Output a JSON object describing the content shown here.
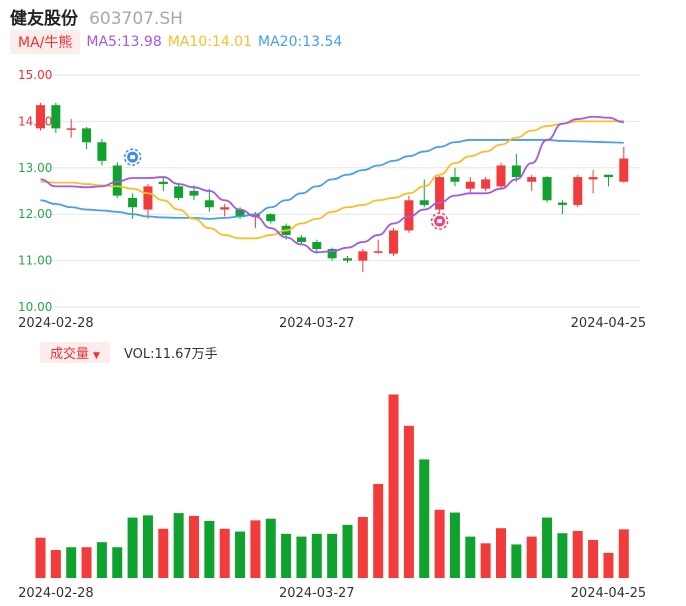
{
  "header": {
    "name": "健友股份",
    "code": "603707.SH"
  },
  "ma_legend": {
    "tag": "MA/牛熊",
    "items": [
      {
        "label": "MA5:13.98",
        "color": "#a259e6"
      },
      {
        "label": "MA10:14.01",
        "color": "#f5c02b"
      },
      {
        "label": "MA20:13.54",
        "color": "#4a9fe8"
      }
    ]
  },
  "volume_legend": {
    "tag": "成交量",
    "value": "VOL:11.67万手"
  },
  "colors": {
    "up": "#f23b3b",
    "down": "#10a22f",
    "ma5": "#a259e6",
    "ma10": "#f5c02b",
    "ma20": "#4a9fe8",
    "grid": "#e6e6e6"
  },
  "icons": {
    "bear_marker": "bear-badge-icon",
    "bull_marker": "bull-badge-icon"
  },
  "chart_data": [
    {
      "type": "candlestick",
      "title": "",
      "ylim": [
        10.0,
        15.0
      ],
      "yticks": [
        "15.00",
        "14.00",
        "13.00",
        "12.00",
        "11.00",
        "10.00"
      ],
      "xtick_labels": [
        "2024-02-28",
        "2024-03-27",
        "2024-04-25"
      ],
      "grid": true,
      "candles": [
        {
          "o": 13.85,
          "c": 14.35,
          "h": 14.4,
          "l": 13.8
        },
        {
          "o": 14.35,
          "c": 13.85,
          "h": 14.4,
          "l": 13.75
        },
        {
          "o": 13.85,
          "c": 13.85,
          "h": 14.05,
          "l": 13.65
        },
        {
          "o": 13.85,
          "c": 13.55,
          "h": 13.88,
          "l": 13.4
        },
        {
          "o": 13.55,
          "c": 13.15,
          "h": 13.62,
          "l": 13.05
        },
        {
          "o": 13.05,
          "c": 12.4,
          "h": 13.12,
          "l": 12.35
        },
        {
          "o": 12.35,
          "c": 12.15,
          "h": 12.45,
          "l": 11.9
        },
        {
          "o": 12.1,
          "c": 12.6,
          "h": 12.65,
          "l": 11.9
        },
        {
          "o": 12.7,
          "c": 12.65,
          "h": 12.8,
          "l": 12.5
        },
        {
          "o": 12.6,
          "c": 12.35,
          "h": 12.65,
          "l": 12.3
        },
        {
          "o": 12.5,
          "c": 12.4,
          "h": 12.62,
          "l": 12.3
        },
        {
          "o": 12.3,
          "c": 12.15,
          "h": 12.55,
          "l": 12.05
        },
        {
          "o": 12.1,
          "c": 12.15,
          "h": 12.22,
          "l": 11.95
        },
        {
          "o": 12.1,
          "c": 11.95,
          "h": 12.15,
          "l": 11.9
        },
        {
          "o": 11.95,
          "c": 12.0,
          "h": 12.05,
          "l": 11.7
        },
        {
          "o": 12.0,
          "c": 11.85,
          "h": 12.02,
          "l": 11.8
        },
        {
          "o": 11.75,
          "c": 11.55,
          "h": 11.8,
          "l": 11.45
        },
        {
          "o": 11.5,
          "c": 11.4,
          "h": 11.55,
          "l": 11.35
        },
        {
          "o": 11.4,
          "c": 11.25,
          "h": 11.45,
          "l": 11.15
        },
        {
          "o": 11.25,
          "c": 11.05,
          "h": 11.28,
          "l": 11.0
        },
        {
          "o": 11.05,
          "c": 11.0,
          "h": 11.1,
          "l": 10.95
        },
        {
          "o": 11.0,
          "c": 11.2,
          "h": 11.25,
          "l": 10.75
        },
        {
          "o": 11.2,
          "c": 11.2,
          "h": 11.45,
          "l": 11.15
        },
        {
          "o": 11.15,
          "c": 11.65,
          "h": 11.7,
          "l": 11.1
        },
        {
          "o": 11.65,
          "c": 12.3,
          "h": 12.4,
          "l": 11.6
        },
        {
          "o": 12.3,
          "c": 12.2,
          "h": 12.75,
          "l": 12.15
        },
        {
          "o": 12.1,
          "c": 12.8,
          "h": 12.82,
          "l": 11.95
        },
        {
          "o": 12.8,
          "c": 12.7,
          "h": 13.0,
          "l": 12.6
        },
        {
          "o": 12.55,
          "c": 12.7,
          "h": 12.8,
          "l": 12.45
        },
        {
          "o": 12.55,
          "c": 12.75,
          "h": 12.8,
          "l": 12.5
        },
        {
          "o": 12.6,
          "c": 13.05,
          "h": 13.1,
          "l": 12.55
        },
        {
          "o": 13.05,
          "c": 12.8,
          "h": 13.3,
          "l": 12.7
        },
        {
          "o": 12.7,
          "c": 12.8,
          "h": 12.85,
          "l": 12.5
        },
        {
          "o": 12.8,
          "c": 12.3,
          "h": 12.82,
          "l": 12.25
        },
        {
          "o": 12.25,
          "c": 12.2,
          "h": 12.3,
          "l": 12.0
        },
        {
          "o": 12.2,
          "c": 12.8,
          "h": 12.85,
          "l": 12.15
        },
        {
          "o": 12.75,
          "c": 12.8,
          "h": 12.95,
          "l": 12.45
        },
        {
          "o": 12.85,
          "c": 12.8,
          "h": 12.85,
          "l": 12.6
        },
        {
          "o": 12.7,
          "c": 13.2,
          "h": 13.45,
          "l": 12.68
        }
      ],
      "ma5": [
        12.75,
        12.6,
        12.6,
        12.58,
        12.6,
        12.7,
        12.78,
        12.78,
        12.8,
        12.65,
        12.58,
        12.5,
        12.3,
        12.1,
        11.95,
        11.7,
        11.5,
        11.35,
        11.18,
        11.2,
        11.28,
        11.4,
        11.55,
        11.8,
        11.95,
        12.1,
        12.25,
        12.4,
        12.45,
        12.45,
        12.55,
        12.75,
        13.1,
        13.6,
        13.95,
        14.05,
        14.1,
        14.08,
        13.98
      ],
      "ma10": [
        12.7,
        12.68,
        12.68,
        12.65,
        12.62,
        12.6,
        12.55,
        12.45,
        12.3,
        12.1,
        11.9,
        11.7,
        11.55,
        11.48,
        11.48,
        11.55,
        11.65,
        11.8,
        11.9,
        12.05,
        12.15,
        12.2,
        12.3,
        12.35,
        12.45,
        12.6,
        12.85,
        13.1,
        13.25,
        13.35,
        13.5,
        13.65,
        13.8,
        13.9,
        13.95,
        14.0,
        14.0,
        14.0,
        14.01
      ],
      "ma20": [
        12.3,
        12.22,
        12.15,
        12.1,
        12.08,
        12.05,
        12.0,
        11.95,
        11.93,
        11.92,
        11.92,
        11.9,
        11.92,
        11.95,
        12.0,
        12.15,
        12.3,
        12.45,
        12.6,
        12.75,
        12.85,
        12.95,
        13.05,
        13.15,
        13.25,
        13.35,
        13.45,
        13.55,
        13.6,
        13.6,
        13.6,
        13.6,
        13.6,
        13.6,
        13.58,
        13.57,
        13.56,
        13.55,
        13.54
      ]
    },
    {
      "type": "bar",
      "title": "",
      "xtick_labels": [
        "2024-02-28",
        "2024-03-27",
        "2024-04-25"
      ],
      "values": [
        7.2,
        5.0,
        5.5,
        5.5,
        6.4,
        5.5,
        10.8,
        11.2,
        8.8,
        11.6,
        11.1,
        10.2,
        8.8,
        8.3,
        10.3,
        10.6,
        7.9,
        7.4,
        7.9,
        7.9,
        9.5,
        10.9,
        16.8,
        32.8,
        27.2,
        21.2,
        12.2,
        11.7,
        7.4,
        6.2,
        8.9,
        6.0,
        7.4,
        10.8,
        8.0,
        8.4,
        6.8,
        4.5,
        8.7
      ],
      "directions": [
        "up",
        "up",
        "down",
        "up",
        "down",
        "down",
        "down",
        "down",
        "up",
        "down",
        "up",
        "down",
        "up",
        "down",
        "up",
        "down",
        "down",
        "down",
        "down",
        "down",
        "down",
        "up",
        "up",
        "up",
        "up",
        "down",
        "up",
        "down",
        "down",
        "up",
        "up",
        "down",
        "up",
        "down",
        "down",
        "up",
        "up",
        "up",
        "up"
      ]
    }
  ]
}
